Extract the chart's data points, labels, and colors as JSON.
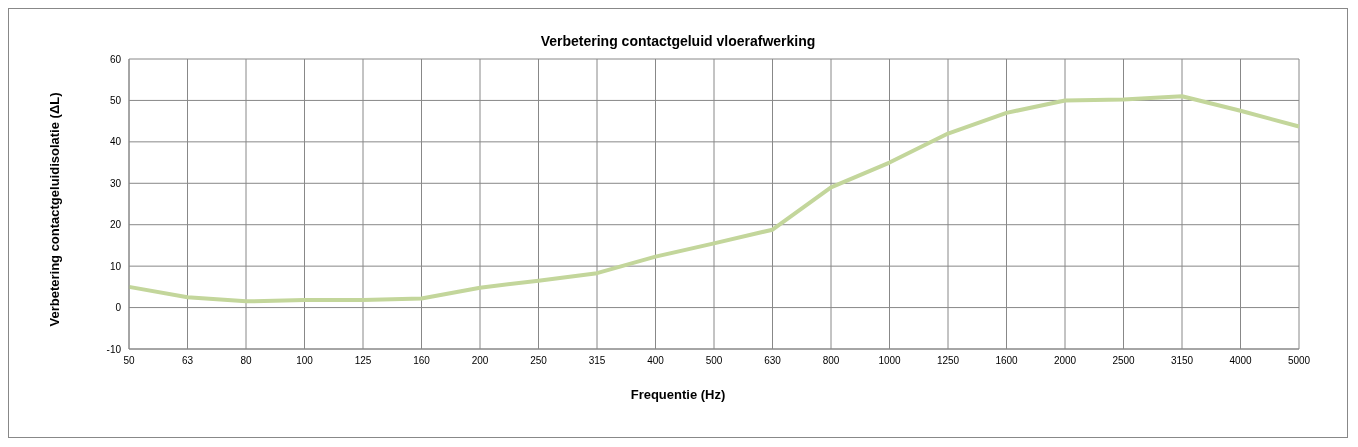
{
  "chart_data": {
    "type": "line",
    "title": "Verbetering contactgeluid vloerafwerking",
    "xlabel": "Frequentie (Hz)",
    "ylabel": "Verbetering contactgeluidisolatie (ΔL)",
    "categories": [
      "50",
      "63",
      "80",
      "100",
      "125",
      "160",
      "200",
      "250",
      "315",
      "400",
      "500",
      "630",
      "800",
      "1000",
      "1250",
      "1600",
      "2000",
      "2500",
      "3150",
      "4000",
      "5000"
    ],
    "series": [
      {
        "color": "#c3d69b",
        "values": [
          5,
          2.5,
          1.5,
          1.8,
          1.8,
          2.2,
          4.8,
          6.5,
          8.3,
          12.3,
          15.5,
          18.8,
          29,
          35,
          42,
          47,
          50,
          50.2,
          51,
          47.5,
          43.7
        ]
      }
    ],
    "ylim": [
      -10,
      60
    ],
    "yticks": [
      -10,
      0,
      10,
      20,
      30,
      40,
      50,
      60
    ],
    "grid": true,
    "marker": "none",
    "line_style": "solid"
  }
}
